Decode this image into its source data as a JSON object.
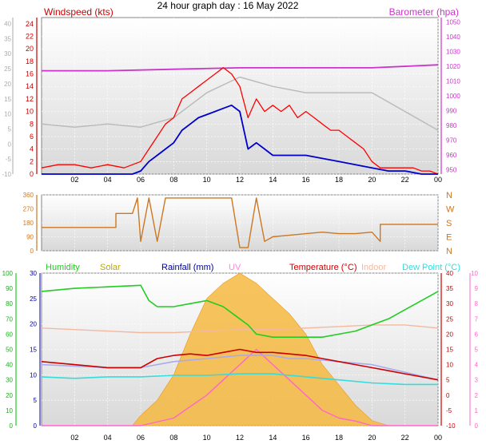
{
  "title": "24 hour graph day : 16 May 2022",
  "x_ticks": [
    "02",
    "04",
    "06",
    "08",
    "10",
    "12",
    "14",
    "16",
    "18",
    "20",
    "22",
    "00"
  ],
  "colors": {
    "windspeed": "#ff0000",
    "gust_avg": "#0000cc",
    "temp_ref": "#bbbbbb",
    "barometer": "#cc33cc",
    "direction": "#cc7722",
    "humidity": "#22cc22",
    "solar": "#f5b840",
    "rainfall": "#000099",
    "uv": "#ff66cc",
    "temperature": "#cc0000",
    "indoor": "#f4b8a0",
    "dewpoint": "#33dddd",
    "feels": "#aaaaee"
  },
  "chart_data": [
    {
      "type": "line",
      "name": "wind-barometer",
      "left_axis": {
        "label": "Windspeed (kts)",
        "ticks": [
          0,
          2,
          4,
          6,
          8,
          10,
          12,
          14,
          16,
          18,
          20,
          22,
          24
        ],
        "range": [
          0,
          25
        ]
      },
      "outer_left_axis": {
        "ticks": [
          -10,
          -5,
          0,
          5,
          10,
          15,
          20,
          25,
          30,
          35,
          40
        ],
        "range": [
          -10,
          42
        ]
      },
      "right_axis": {
        "label": "Barometer (hpa)",
        "ticks": [
          950,
          960,
          970,
          980,
          990,
          1000,
          1010,
          1020,
          1030,
          1040,
          1050
        ],
        "range": [
          947,
          1053
        ]
      },
      "series": [
        {
          "name": "Windspeed (kts)",
          "x": [
            0,
            1,
            2,
            3,
            4,
            5,
            5.5,
            6,
            6.5,
            7,
            7.5,
            8,
            8.5,
            9,
            9.5,
            10,
            10.5,
            11,
            11.5,
            12,
            12.5,
            13,
            13.5,
            14,
            14.5,
            15,
            15.5,
            16,
            16.5,
            17,
            17.5,
            18,
            18.5,
            19,
            19.5,
            20,
            20.5,
            21,
            21.5,
            22,
            22.5,
            23,
            23.5,
            24
          ],
          "y": [
            1,
            1.5,
            1.5,
            1,
            1.5,
            1,
            1.5,
            2,
            4,
            6,
            8,
            9,
            12,
            13,
            14,
            15,
            16,
            17,
            16,
            14,
            9,
            12,
            10,
            11,
            10,
            11,
            9,
            10,
            9,
            8,
            7,
            7,
            6,
            5,
            4,
            2,
            1,
            1,
            1,
            1,
            1,
            0.5,
            0.5,
            0
          ]
        },
        {
          "name": "Average wind",
          "x": [
            0,
            2,
            4,
            5,
            5.5,
            6,
            6.5,
            7,
            7.5,
            8,
            8.5,
            9,
            9.5,
            10,
            10.5,
            11,
            11.5,
            12,
            12.5,
            13,
            13.5,
            14,
            15,
            16,
            17,
            18,
            19,
            20,
            21,
            22,
            23,
            24
          ],
          "y": [
            0,
            0,
            0,
            0,
            0,
            0.5,
            2,
            3,
            4,
            5,
            7,
            8,
            9,
            9.5,
            10,
            10.5,
            11,
            10,
            4,
            5,
            4,
            3,
            3,
            3,
            2.5,
            2,
            1.5,
            1,
            0.5,
            0.5,
            0,
            0
          ]
        },
        {
          "name": "Temperature reference",
          "x": [
            0,
            2,
            4,
            6,
            8,
            10,
            12,
            14,
            16,
            18,
            20,
            22,
            24
          ],
          "y": [
            8,
            7.5,
            8,
            7.5,
            9,
            13,
            15.5,
            14,
            13,
            13,
            13,
            10,
            7
          ]
        },
        {
          "name": "Barometer (hpa)",
          "x": [
            0,
            4,
            8,
            12,
            16,
            20,
            24
          ],
          "y": [
            1017,
            1017,
            1018,
            1019,
            1019,
            1019,
            1021
          ]
        }
      ]
    },
    {
      "type": "line",
      "name": "wind-direction",
      "left_axis": {
        "ticks": [
          0,
          90,
          180,
          270,
          360
        ],
        "range": [
          0,
          360
        ]
      },
      "right_axis": {
        "ticks": [
          "N",
          "E",
          "S",
          "W",
          "N"
        ]
      },
      "series": [
        {
          "name": "Wind direction",
          "x": [
            0,
            4.5,
            4.5,
            5.5,
            5.8,
            6,
            6.5,
            7,
            7.5,
            8,
            8.5,
            9,
            9.5,
            10,
            10.5,
            11,
            11.5,
            12,
            12.5,
            13,
            13.5,
            14,
            15,
            16,
            17,
            18,
            19,
            20,
            20.5,
            20.5,
            24
          ],
          "y": [
            150,
            150,
            240,
            240,
            340,
            60,
            340,
            60,
            340,
            340,
            340,
            340,
            340,
            340,
            340,
            340,
            340,
            20,
            20,
            340,
            60,
            90,
            100,
            110,
            120,
            110,
            110,
            120,
            60,
            170,
            170
          ]
        }
      ]
    },
    {
      "type": "line",
      "name": "humidity-temperature",
      "left_axis": {
        "ticks": [
          0,
          10,
          20,
          30,
          40,
          50,
          60,
          70,
          80,
          90,
          100
        ],
        "range": [
          0,
          100
        ]
      },
      "inner_left_axis": {
        "ticks": [
          0,
          5,
          10,
          15,
          20,
          25,
          30
        ],
        "range": [
          0,
          30
        ]
      },
      "right_axis": {
        "label": "Temperature (°C)",
        "ticks": [
          -10,
          -5,
          0,
          5,
          10,
          15,
          20,
          25,
          30,
          35,
          40
        ],
        "range": [
          -10,
          40
        ]
      },
      "outer_right_axis": {
        "ticks": [
          0,
          1,
          2,
          3,
          4,
          5,
          6,
          7,
          8,
          9,
          10
        ],
        "range": [
          0,
          10
        ]
      },
      "legend": [
        "Humidity",
        "Solar",
        "Rainfall (mm)",
        "UV",
        "Temperature (°C)",
        "Indoor",
        "Dew Point (°C)"
      ],
      "series": [
        {
          "name": "Humidity",
          "x": [
            0,
            2,
            4,
            6,
            6.5,
            7,
            8,
            9,
            10,
            11,
            12,
            12.5,
            13,
            14,
            15,
            16,
            17,
            18,
            19,
            20,
            21,
            22,
            23,
            24
          ],
          "y": [
            88,
            90,
            91,
            92,
            82,
            78,
            78,
            80,
            82,
            78,
            70,
            66,
            60,
            58,
            58,
            58,
            58,
            60,
            62,
            66,
            70,
            76,
            82,
            88
          ]
        },
        {
          "name": "Solar",
          "x": [
            0,
            5,
            5.5,
            6,
            7,
            8,
            9,
            10,
            11,
            12,
            13,
            14,
            15,
            16,
            17,
            18,
            19,
            20,
            21,
            24
          ],
          "y": [
            0,
            0,
            0,
            2,
            5,
            10,
            18,
            25,
            28,
            30,
            28,
            25,
            22,
            18,
            12,
            8,
            4,
            1,
            0,
            0
          ]
        },
        {
          "name": "UV",
          "x": [
            0,
            6,
            8,
            10,
            11,
            12,
            13,
            14,
            15,
            16,
            17,
            18,
            19,
            20,
            21,
            24
          ],
          "y": [
            0,
            0,
            0.5,
            2,
            3,
            4,
            5,
            4,
            3,
            2,
            1,
            0.5,
            0.3,
            0,
            0,
            0
          ]
        },
        {
          "name": "Temperature (°C)",
          "x": [
            0,
            2,
            4,
            6,
            7,
            8,
            9,
            10,
            11,
            12,
            13,
            14,
            15,
            16,
            17,
            18,
            19,
            20,
            21,
            22,
            23,
            24
          ],
          "y": [
            11,
            10,
            9,
            9,
            12,
            13,
            13.5,
            13,
            14,
            15,
            14,
            14,
            13.5,
            13,
            12,
            11,
            10,
            9,
            8,
            7,
            6,
            5
          ]
        },
        {
          "name": "Indoor",
          "x": [
            0,
            2,
            4,
            6,
            8,
            10,
            12,
            14,
            16,
            18,
            20,
            22,
            24
          ],
          "y": [
            22,
            21.5,
            21,
            20.5,
            20.5,
            21,
            21.5,
            21.5,
            22,
            22.5,
            23,
            23,
            22
          ]
        },
        {
          "name": "Dew Point (°C)",
          "x": [
            0,
            2,
            4,
            6,
            8,
            10,
            12,
            14,
            16,
            18,
            20,
            22,
            24
          ],
          "y": [
            6,
            5.5,
            6,
            6,
            6.5,
            6.5,
            7,
            7,
            6,
            5,
            4,
            3.5,
            3.5
          ]
        },
        {
          "name": "Feels",
          "x": [
            0,
            4,
            6,
            8,
            10,
            12,
            14,
            15,
            16,
            18,
            20,
            24
          ],
          "y": [
            10,
            9,
            9,
            11,
            12,
            13,
            13,
            12,
            12,
            11,
            10,
            5
          ]
        }
      ]
    }
  ]
}
